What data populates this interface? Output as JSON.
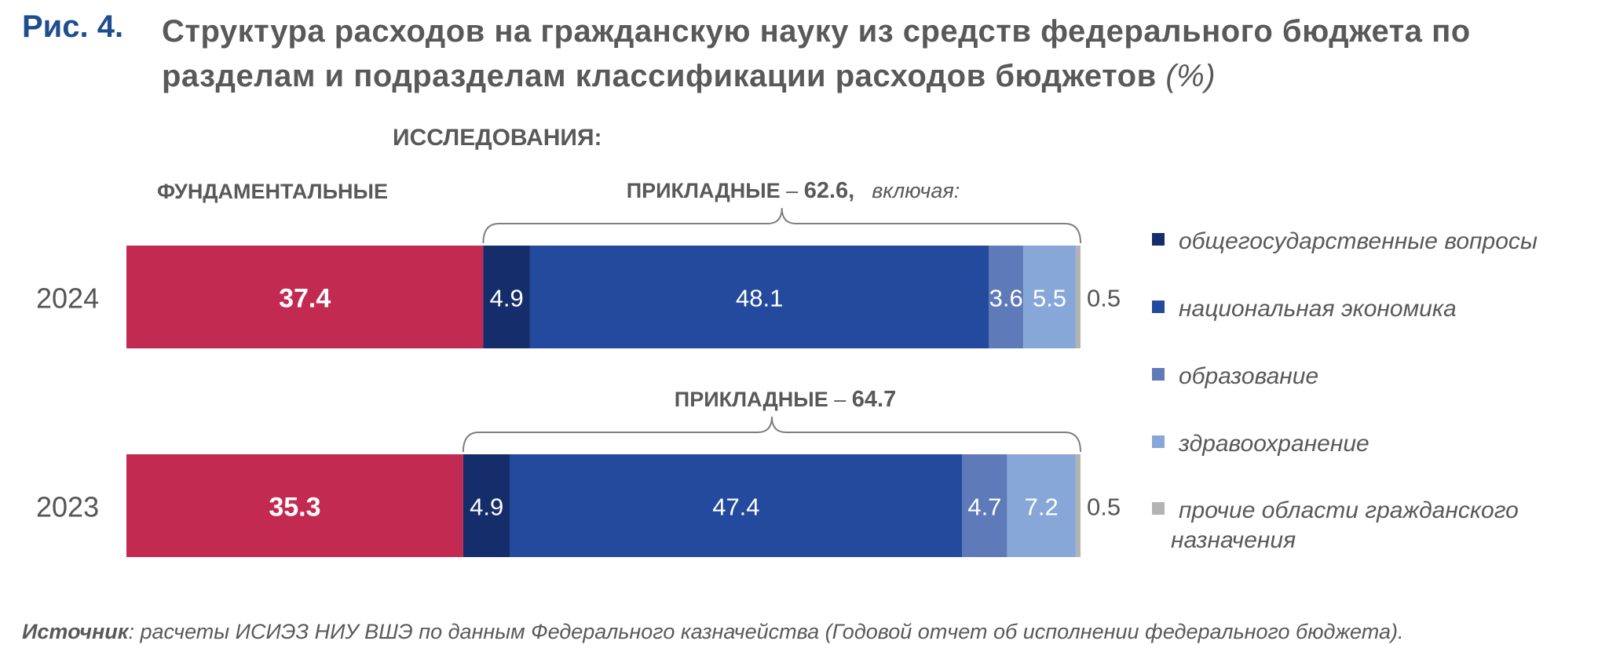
{
  "figure": {
    "label": "Рис. 4.",
    "title": "Структура расходов на гражданскую науку из средств федерального бюджета по разделам и подразделам классификации расходов бюджетов",
    "unit": "(%)"
  },
  "chart_data": {
    "type": "bar",
    "orientation": "horizontal",
    "stacked": true,
    "categories": [
      "2024",
      "2023"
    ],
    "series": [
      {
        "name": "фундаментальные",
        "color": "#c22a52",
        "values": [
          37.4,
          35.3
        ]
      },
      {
        "name": "общегосударственные вопросы",
        "color": "#152d6a",
        "values": [
          4.9,
          4.9
        ]
      },
      {
        "name": "национальная экономика",
        "color": "#234a9c",
        "values": [
          48.1,
          47.4
        ]
      },
      {
        "name": "образование",
        "color": "#5e7ab8",
        "values": [
          3.6,
          4.7
        ]
      },
      {
        "name": "здравоохранение",
        "color": "#86a7d8",
        "values": [
          5.5,
          7.2
        ]
      },
      {
        "name": "прочие области гражданского назначения",
        "color": "#b3b3b3",
        "values": [
          0.5,
          0.5
        ]
      }
    ],
    "xlim": [
      0,
      100
    ],
    "group_labels": {
      "research": "ИССЛЕДОВАНИЯ:",
      "fundamental": "ФУНДАМЕНТАЛЬНЫЕ",
      "applied_2024": {
        "label": "ПРИКЛАДНЫЕ",
        "dash": "–",
        "value": "62.6,",
        "note": "включая:"
      },
      "applied_2023": {
        "label": "ПРИКЛАДНЫЕ",
        "dash": "–",
        "value": "64.7"
      }
    },
    "legend": {
      "placement": "right",
      "items": [
        {
          "label": "общегосударственные вопросы",
          "color": "#152d6a"
        },
        {
          "label": "национальная экономика",
          "color": "#234a9c"
        },
        {
          "label": "образование",
          "color": "#5e7ab8"
        },
        {
          "label": "здравоохранение",
          "color": "#86a7d8"
        },
        {
          "label": "прочие области гражданского",
          "label_line2": "назначения",
          "color": "#b3b3b3"
        }
      ]
    }
  },
  "source": {
    "label": "Источник",
    "text": ": расчеты ИСИЭЗ НИУ ВШЭ по данным Федерального казначейства (Годовой отчет об исполнении федерального бюджета)."
  }
}
